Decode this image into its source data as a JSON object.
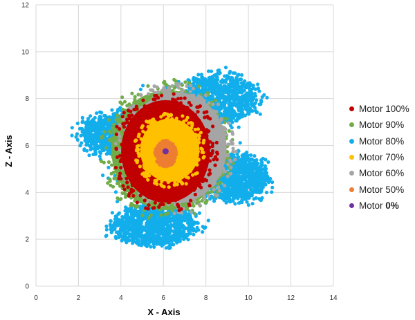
{
  "chart_data": {
    "type": "scatter",
    "title": "",
    "xlabel": "X - Axis",
    "ylabel": "Z - Axis",
    "xlim": [
      0,
      14
    ],
    "ylim": [
      0,
      12
    ],
    "xticks": [
      "0",
      "2",
      "4",
      "6",
      "8",
      "10",
      "12",
      "14"
    ],
    "yticks": [
      "0",
      "2",
      "4",
      "6",
      "8",
      "10",
      "12"
    ],
    "grid": true,
    "legend_position": "right",
    "series": [
      {
        "name": "Motor 80%",
        "color": "#12AEEC",
        "shape": "lobes",
        "lobes": [
          [
            3.8,
            6.5,
            1.6,
            0.85
          ],
          [
            8.6,
            8.0,
            1.7,
            1.0
          ],
          [
            9.4,
            4.6,
            1.5,
            0.9
          ],
          [
            5.6,
            2.6,
            1.9,
            0.85
          ],
          [
            6.2,
            5.7,
            2.6,
            2.3
          ]
        ],
        "range": {
          "x": [
            0.6,
            11.8
          ],
          "z": [
            1.5,
            9.9
          ]
        }
      },
      {
        "name": "Motor 90%",
        "color": "#71AC48",
        "shape": "disc",
        "center": [
          6.2,
          5.8
        ],
        "rx": 2.85,
        "ry": 2.75
      },
      {
        "name": "Motor 60%",
        "color": "#A5A5A5",
        "shape": "disc",
        "center": [
          6.6,
          5.9
        ],
        "rx": 2.55,
        "ry": 2.55
      },
      {
        "name": "Motor 100%",
        "color": "#C00000",
        "shape": "disc",
        "center": [
          6.1,
          5.75
        ],
        "rx": 2.25,
        "ry": 2.35
      },
      {
        "name": "Motor 70%",
        "color": "#FFC000",
        "shape": "disc",
        "center": [
          6.3,
          5.8
        ],
        "rx": 1.5,
        "ry": 1.45
      },
      {
        "name": "Motor 50%",
        "color": "#ED7D31",
        "shape": "disc",
        "center": [
          6.1,
          5.65
        ],
        "rx": 0.45,
        "ry": 0.5
      },
      {
        "name": "Motor 0%",
        "color": "#7030A0",
        "shape": "point",
        "x": 6.1,
        "z": 5.75
      }
    ],
    "legend": [
      {
        "prefix": "Motor ",
        "bold": "",
        "suffix": "100%",
        "color": "#C00000"
      },
      {
        "prefix": "Motor ",
        "bold": "",
        "suffix": "90%",
        "color": "#71AC48"
      },
      {
        "prefix": "Motor ",
        "bold": "",
        "suffix": "80%",
        "color": "#12AEEC"
      },
      {
        "prefix": "Motor ",
        "bold": "",
        "suffix": "70%",
        "color": "#FFC000"
      },
      {
        "prefix": "Motor ",
        "bold": "",
        "suffix": "60%",
        "color": "#A5A5A5"
      },
      {
        "prefix": "Motor ",
        "bold": "",
        "suffix": "50%",
        "color": "#ED7D31"
      },
      {
        "prefix": "Motor ",
        "bold": "0%",
        "suffix": "",
        "color": "#7030A0"
      }
    ]
  }
}
